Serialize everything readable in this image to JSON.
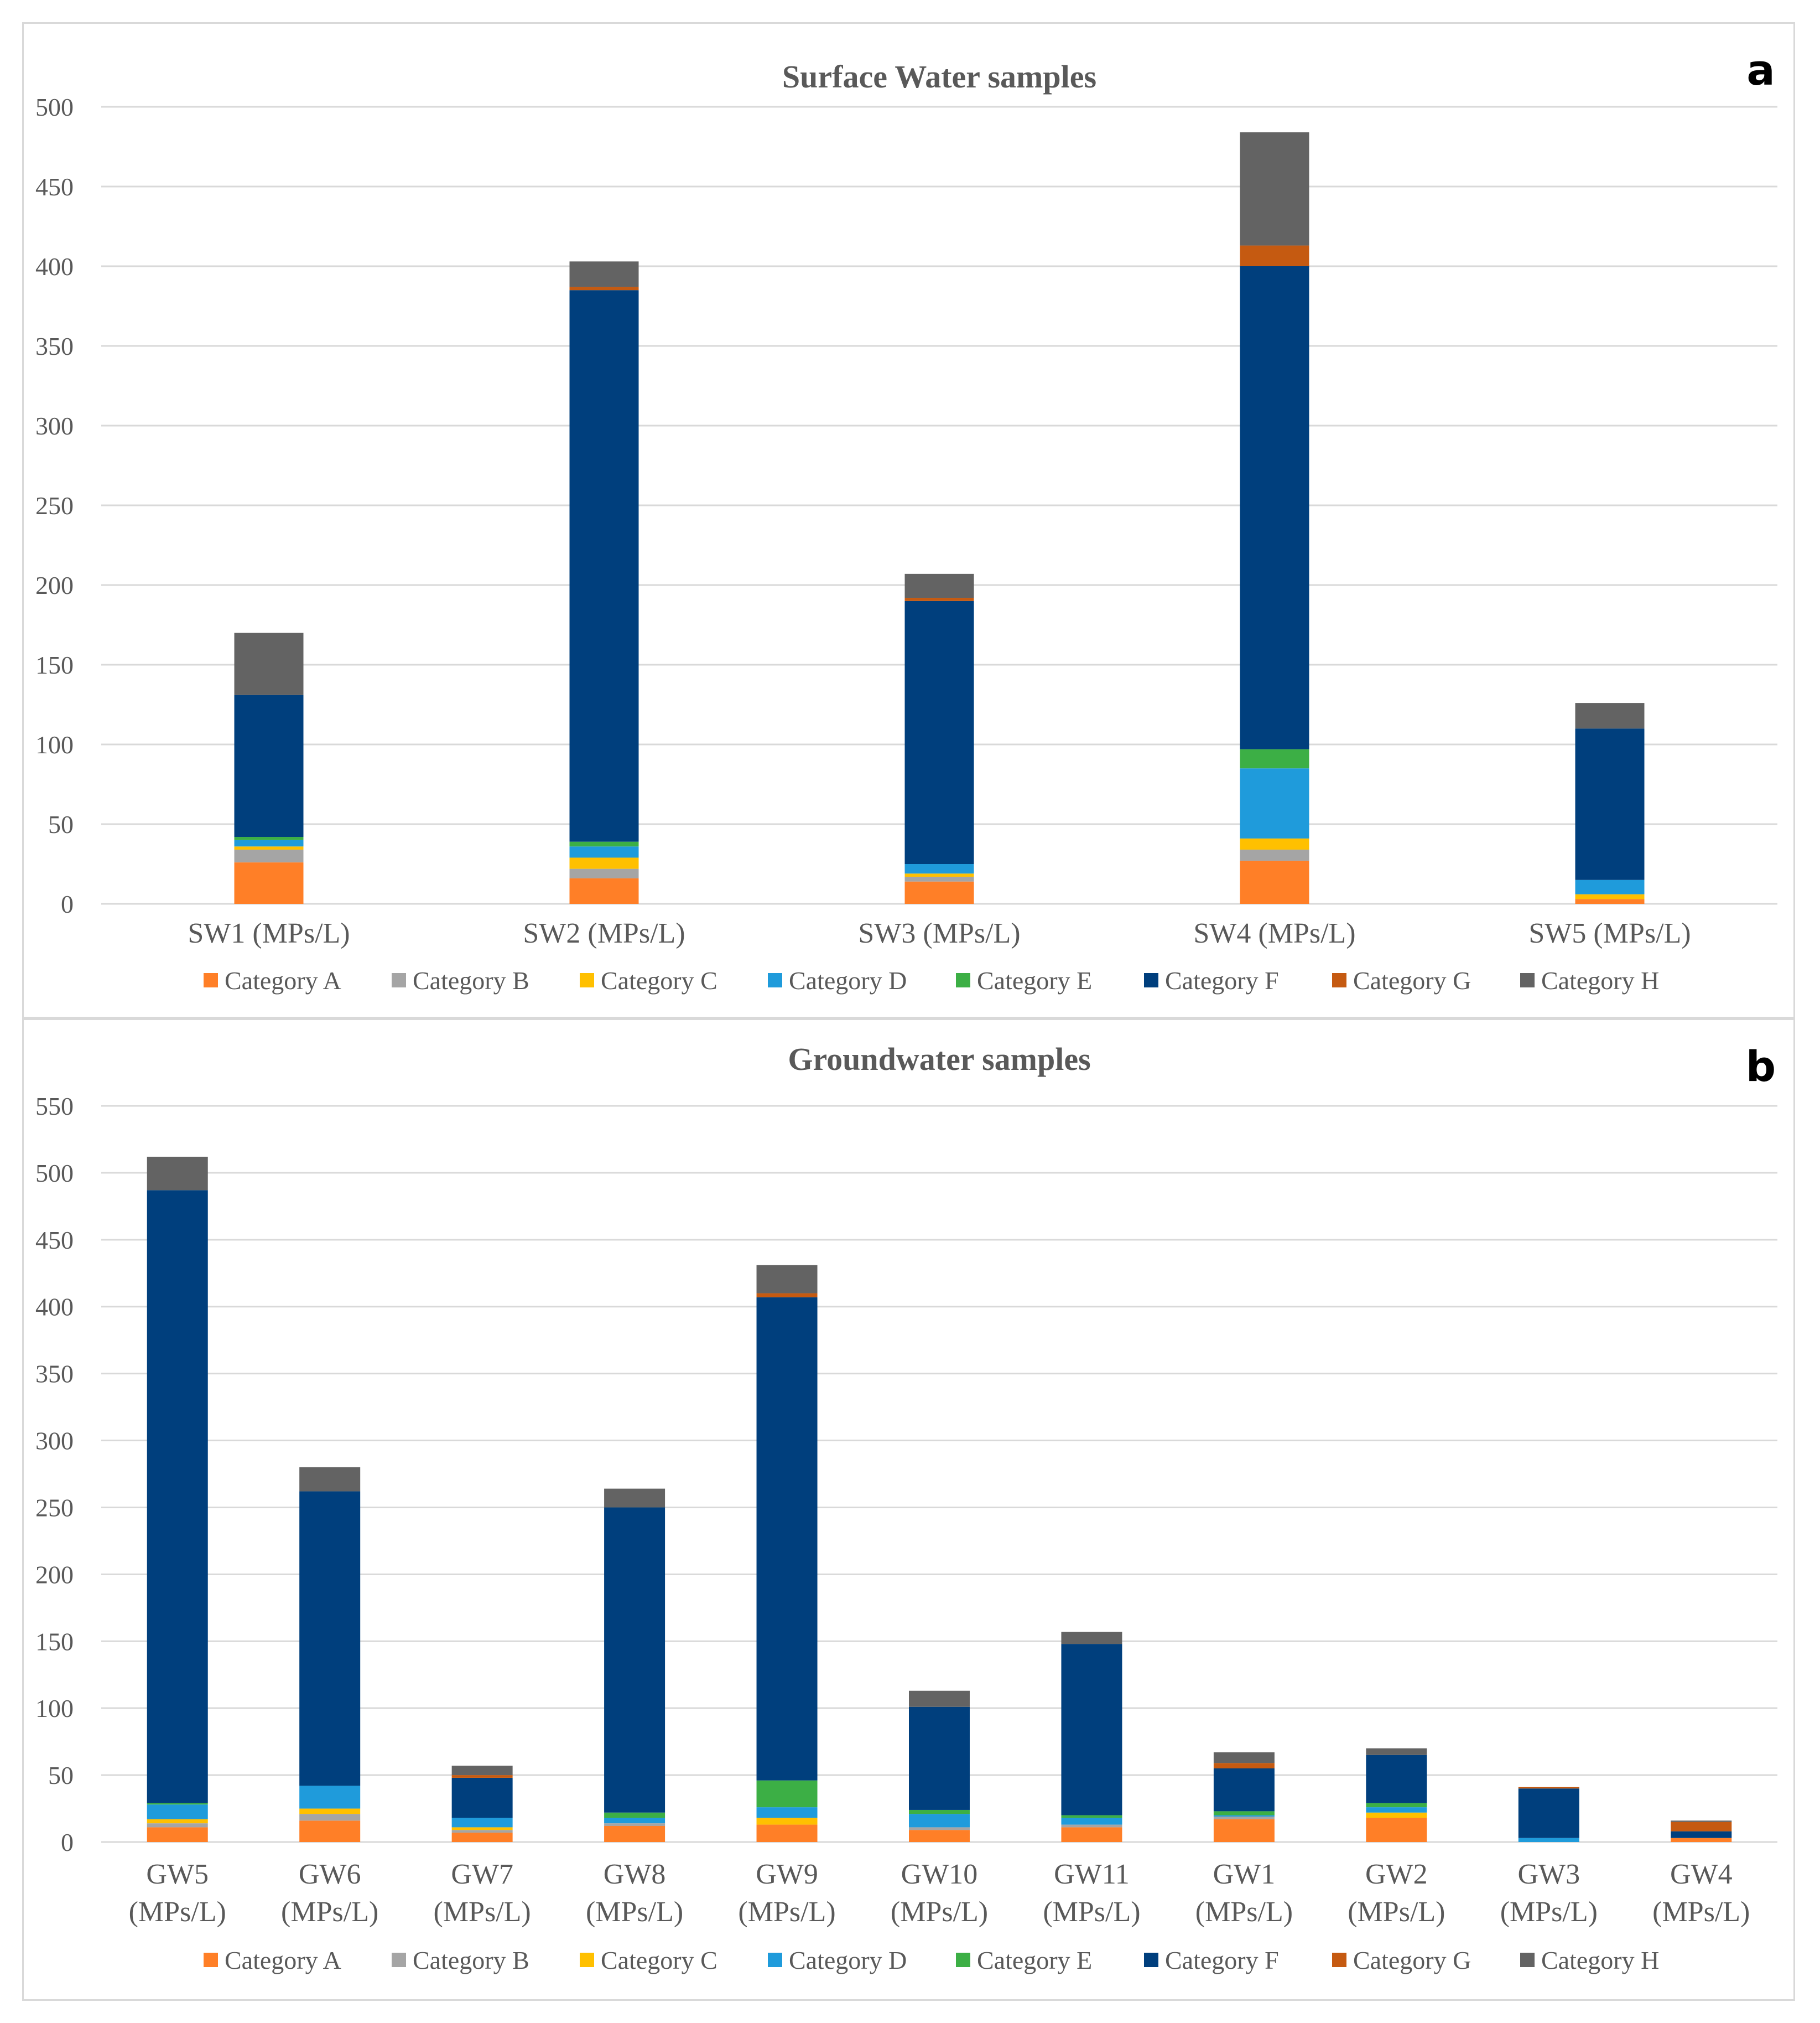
{
  "chart_data": [
    {
      "type": "bar",
      "stacked": true,
      "panel_letter": "a",
      "title": "Surface Water samples",
      "categories": [
        "SW1 (MPs/L)",
        "SW2 (MPs/L)",
        "SW3 (MPs/L)",
        "SW4 (MPs/L)",
        "SW5 (MPs/L)"
      ],
      "ylim": [
        0,
        500
      ],
      "yticks": [
        0,
        50,
        100,
        150,
        200,
        250,
        300,
        350,
        400,
        450,
        500
      ],
      "grid": true,
      "legend_position": "bottom",
      "series": [
        {
          "name": "Category A",
          "color": "#FF7F27",
          "values": [
            26,
            16,
            14,
            27,
            3
          ]
        },
        {
          "name": "Category B",
          "color": "#A5A5A5",
          "values": [
            8,
            6,
            3,
            7,
            0
          ]
        },
        {
          "name": "Category C",
          "color": "#FFC000",
          "values": [
            2,
            7,
            2,
            7,
            3
          ]
        },
        {
          "name": "Category D",
          "color": "#1F9BDB",
          "values": [
            4,
            7,
            6,
            44,
            9
          ]
        },
        {
          "name": "Category E",
          "color": "#3CAF45",
          "values": [
            2,
            3,
            0,
            12,
            0
          ]
        },
        {
          "name": "Category F",
          "color": "#003F7D",
          "values": [
            89,
            346,
            165,
            303,
            95
          ]
        },
        {
          "name": "Category G",
          "color": "#C55A11",
          "values": [
            0,
            2,
            2,
            13,
            0
          ]
        },
        {
          "name": "Category H",
          "color": "#636363",
          "values": [
            39,
            16,
            15,
            71,
            16
          ]
        }
      ]
    },
    {
      "type": "bar",
      "stacked": true,
      "panel_letter": "b",
      "title": "Groundwater samples",
      "categories": [
        [
          "GW5",
          "(MPs/L)"
        ],
        [
          "GW6",
          "(MPs/L)"
        ],
        [
          "GW7",
          "(MPs/L)"
        ],
        [
          "GW8",
          "(MPs/L)"
        ],
        [
          "GW9",
          "(MPs/L)"
        ],
        [
          "GW10",
          "(MPs/L)"
        ],
        [
          "GW11",
          "(MPs/L)"
        ],
        [
          "GW1",
          "(MPs/L)"
        ],
        [
          "GW2",
          "(MPs/L)"
        ],
        [
          "GW3",
          "(MPs/L)"
        ],
        [
          "GW4",
          "(MPs/L)"
        ]
      ],
      "ylim": [
        0,
        550
      ],
      "yticks": [
        0,
        50,
        100,
        150,
        200,
        250,
        300,
        350,
        400,
        450,
        500,
        550
      ],
      "grid": true,
      "legend_position": "bottom",
      "series": [
        {
          "name": "Category A",
          "color": "#FF7F27",
          "values": [
            11,
            16,
            7,
            12,
            13,
            9,
            11,
            17,
            18,
            0,
            3
          ]
        },
        {
          "name": "Category B",
          "color": "#A5A5A5",
          "values": [
            3,
            5,
            2,
            2,
            0,
            2,
            2,
            2,
            0,
            0,
            0
          ]
        },
        {
          "name": "Category C",
          "color": "#FFC000",
          "values": [
            3,
            4,
            2,
            0,
            5,
            0,
            0,
            0,
            4,
            0,
            0
          ]
        },
        {
          "name": "Category D",
          "color": "#1F9BDB",
          "values": [
            11,
            17,
            7,
            4,
            8,
            10,
            5,
            1,
            4,
            3,
            0
          ]
        },
        {
          "name": "Category E",
          "color": "#3CAF45",
          "values": [
            1,
            0,
            0,
            4,
            20,
            3,
            2,
            3,
            3,
            0,
            0
          ]
        },
        {
          "name": "Category F",
          "color": "#003F7D",
          "values": [
            458,
            220,
            30,
            228,
            361,
            77,
            128,
            32,
            36,
            37,
            5
          ]
        },
        {
          "name": "Category G",
          "color": "#C55A11",
          "values": [
            0,
            0,
            2,
            0,
            3,
            0,
            0,
            4,
            0,
            1,
            7
          ]
        },
        {
          "name": "Category H",
          "color": "#636363",
          "values": [
            25,
            18,
            7,
            14,
            21,
            12,
            9,
            8,
            5,
            0,
            1
          ]
        }
      ]
    }
  ]
}
